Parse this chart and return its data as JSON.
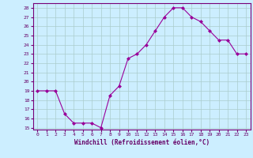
{
  "x": [
    0,
    1,
    2,
    3,
    4,
    5,
    6,
    7,
    8,
    9,
    10,
    11,
    12,
    13,
    14,
    15,
    16,
    17,
    18,
    19,
    20,
    21,
    22,
    23
  ],
  "y": [
    19,
    19,
    19,
    16.5,
    15.5,
    15.5,
    15.5,
    15,
    18.5,
    19.5,
    22.5,
    23,
    24,
    25.5,
    27,
    28,
    28,
    27,
    26.5,
    25.5,
    24.5,
    24.5,
    23,
    23
  ],
  "line_color": "#990099",
  "marker": "D",
  "marker_size": 2,
  "bg_color": "#cceeff",
  "grid_color": "#aacccc",
  "xlabel": "Windchill (Refroidissement éolien,°C)",
  "xlabel_color": "#660066",
  "tick_color": "#660066",
  "ylim_min": 15,
  "ylim_max": 28.5,
  "yticks": [
    15,
    16,
    17,
    18,
    19,
    20,
    21,
    22,
    23,
    24,
    25,
    26,
    27,
    28
  ],
  "xticks": [
    0,
    1,
    2,
    3,
    4,
    5,
    6,
    7,
    8,
    9,
    10,
    11,
    12,
    13,
    14,
    15,
    16,
    17,
    18,
    19,
    20,
    21,
    22,
    23
  ],
  "spine_color": "#770077"
}
